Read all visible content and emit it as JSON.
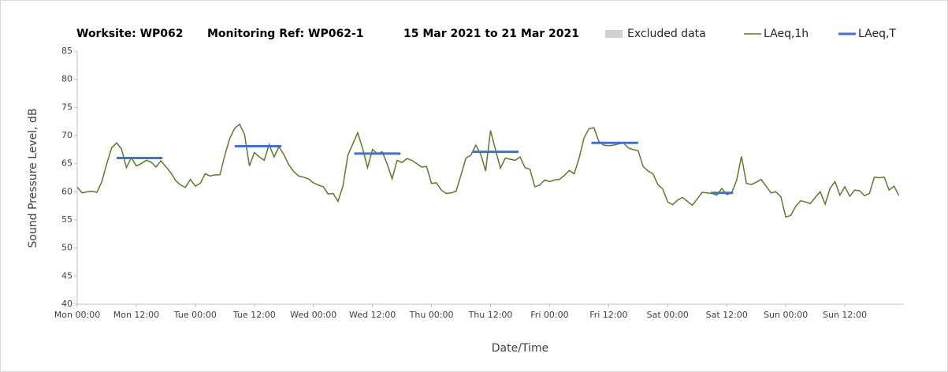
{
  "chart_data": {
    "type": "line",
    "title": "Worksite: WP062",
    "monitoring_ref": "Monitoring Ref: WP062-1",
    "date_range": "15 Mar 2021 to 21 Mar 2021",
    "x_label": "Date/Time",
    "y_label": "Sound Pressure Level, dB",
    "excluded_label": "Excluded data",
    "excluded_color": "#d0d0d0",
    "xlim": [
      0,
      168
    ],
    "xticks": [
      {
        "value": 0,
        "label": "Mon 00:00"
      },
      {
        "value": 12,
        "label": "Mon 12:00"
      },
      {
        "value": 24,
        "label": "Tue 00:00"
      },
      {
        "value": 36,
        "label": "Tue 12:00"
      },
      {
        "value": 48,
        "label": "Wed 00:00"
      },
      {
        "value": 60,
        "label": "Wed 12:00"
      },
      {
        "value": 72,
        "label": "Thu 00:00"
      },
      {
        "value": 84,
        "label": "Thu 12:00"
      },
      {
        "value": 96,
        "label": "Fri 00:00"
      },
      {
        "value": 108,
        "label": "Fri 12:00"
      },
      {
        "value": 120,
        "label": "Sat 00:00"
      },
      {
        "value": 132,
        "label": "Sat 12:00"
      },
      {
        "value": 144,
        "label": "Sun 00:00"
      },
      {
        "value": 156,
        "label": "Sun 12:00"
      }
    ],
    "ylim": [
      40,
      85
    ],
    "yticks": [
      40,
      45,
      50,
      55,
      60,
      65,
      70,
      75,
      80,
      85
    ],
    "grid": false,
    "x": [
      0,
      1,
      2,
      3,
      4,
      5,
      6,
      7,
      8,
      9,
      10,
      11,
      12,
      13,
      14,
      15,
      16,
      17,
      18,
      19,
      20,
      21,
      22,
      23,
      24,
      25,
      26,
      27,
      28,
      29,
      30,
      31,
      32,
      33,
      34,
      35,
      36,
      37,
      38,
      39,
      40,
      41,
      42,
      43,
      44,
      45,
      46,
      47,
      48,
      49,
      50,
      51,
      52,
      53,
      54,
      55,
      56,
      57,
      58,
      59,
      60,
      61,
      62,
      63,
      64,
      65,
      66,
      67,
      68,
      69,
      70,
      71,
      72,
      73,
      74,
      75,
      76,
      77,
      78,
      79,
      80,
      81,
      82,
      83,
      84,
      85,
      86,
      87,
      88,
      89,
      90,
      91,
      92,
      93,
      94,
      95,
      96,
      97,
      98,
      99,
      100,
      101,
      102,
      103,
      104,
      105,
      106,
      107,
      108,
      109,
      110,
      111,
      112,
      113,
      114,
      115,
      116,
      117,
      118,
      119,
      120,
      121,
      122,
      123,
      124,
      125,
      126,
      127,
      128,
      129,
      130,
      131,
      132,
      133,
      134,
      135,
      136,
      137,
      138,
      139,
      140,
      141,
      142,
      143,
      144,
      145,
      146,
      147,
      148,
      149,
      150,
      151,
      152,
      153,
      154,
      155,
      156,
      157,
      158,
      159,
      160,
      161,
      162,
      163,
      164,
      165,
      166,
      167
    ],
    "series": [
      {
        "name": "LAeq,1h",
        "color": "#5a7a2e",
        "values": [
          60.8,
          59.8,
          60,
          60.1,
          59.9,
          61.8,
          65,
          67.8,
          68.7,
          67.6,
          64.3,
          66.1,
          64.6,
          65,
          65.6,
          65.3,
          64.4,
          65.5,
          64.5,
          63.4,
          62,
          61.2,
          60.8,
          62.2,
          61,
          61.5,
          63.2,
          62.8,
          63,
          63,
          66.5,
          69.5,
          71.3,
          72,
          70.2,
          64.6,
          67,
          66.2,
          65.6,
          68.4,
          66.2,
          68,
          66.6,
          64.8,
          63.6,
          62.8,
          62.6,
          62.3,
          61.6,
          61.2,
          60.9,
          59.6,
          59.7,
          58.3,
          61,
          66.5,
          68.5,
          70.5,
          67.7,
          64.3,
          67.5,
          66.8,
          67.1,
          64.9,
          62.3,
          65.6,
          65.2,
          65.9,
          65.6,
          65,
          64.4,
          64.5,
          61.5,
          61.6,
          60.3,
          59.7,
          59.8,
          60.1,
          63,
          66,
          66.5,
          68.3,
          66.7,
          63.7,
          70.9,
          67.5,
          64.2,
          66,
          65.8,
          65.6,
          66.2,
          64.3,
          64,
          60.9,
          61.2,
          62.1,
          61.8,
          62.1,
          62.2,
          62.9,
          63.8,
          63.2,
          66,
          69.6,
          71.2,
          71.4,
          69,
          68.3,
          68.2,
          68.3,
          68.5,
          68.7,
          67.8,
          67.5,
          67.3,
          64.5,
          63.7,
          63.2,
          61.3,
          60.5,
          58.2,
          57.7,
          58.5,
          59,
          58.3,
          57.6,
          58.7,
          59.9,
          59.8,
          59.7,
          59.4,
          60.6,
          59.5,
          59.8,
          62,
          66.3,
          61.5,
          61.3,
          61.7,
          62.2,
          61,
          59.8,
          60,
          59.1,
          55.5,
          55.8,
          57.4,
          58.4,
          58.2,
          57.9,
          59,
          60,
          57.8,
          60.6,
          61.8,
          59.4,
          60.9,
          59.2,
          60.3,
          60.2,
          59.3,
          59.7,
          62.6,
          62.5,
          62.6,
          60.3,
          61,
          59.3
        ]
      },
      {
        "name": "LAeq,T",
        "color": "#4472c4",
        "segments": [
          {
            "x": [
              8,
              17.3
            ],
            "value": 66
          },
          {
            "x": [
              32,
              41.5
            ],
            "value": 68.1
          },
          {
            "x": [
              56.3,
              65.7
            ],
            "value": 66.8
          },
          {
            "x": [
              80.4,
              89.7
            ],
            "value": 67.1
          },
          {
            "x": [
              104.5,
              114
            ],
            "value": 68.7
          },
          {
            "x": [
              128.8,
              133.3
            ],
            "value": 59.8
          }
        ]
      }
    ]
  }
}
